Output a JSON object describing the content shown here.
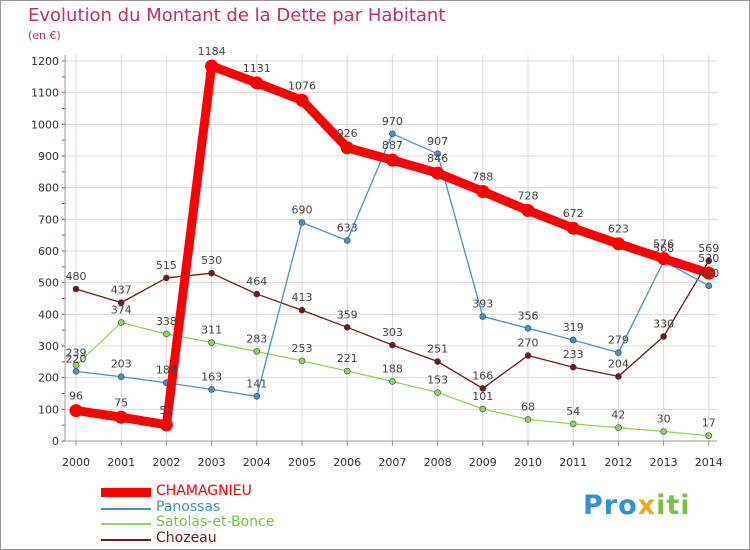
{
  "title": "Evolution du Montant de la Dette par Habitant",
  "unit_label": "(en €)",
  "brand": {
    "part1": "Pro",
    "part2": "x",
    "part3": "iti",
    "colors": [
      "#2f8fd8",
      "#f2a81c",
      "#7cc242"
    ]
  },
  "chart_data": {
    "type": "line",
    "title": "Evolution du Montant de la Dette par Habitant",
    "ylabel": "(en €)",
    "xlabel": "",
    "ylim": [
      0,
      1200
    ],
    "yticks": [
      0,
      100,
      200,
      300,
      400,
      500,
      600,
      700,
      800,
      900,
      1000,
      1100,
      1200
    ],
    "grid": true,
    "legend_position": "bottom-left",
    "x": [
      "2000",
      "2001",
      "2002",
      "2003",
      "2004",
      "2005",
      "2006",
      "2007",
      "2008",
      "2009",
      "2010",
      "2011",
      "2012",
      "2013",
      "2014"
    ],
    "series": [
      {
        "name": "CHAMAGNIEU",
        "color": "#ff0000",
        "values": [
          96,
          75,
          51,
          1184,
          1131,
          1076,
          926,
          887,
          846,
          788,
          728,
          672,
          623,
          576,
          530
        ],
        "labels": [
          "96",
          "75",
          "51",
          "1184",
          "1131",
          "1076",
          "926",
          "887",
          "846",
          "788",
          "728",
          "672",
          "623",
          "576",
          "530"
        ]
      },
      {
        "name": "Panossas",
        "color": "#4a90c8",
        "values": [
          220,
          203,
          184,
          163,
          141,
          690,
          633,
          970,
          907,
          393,
          356,
          319,
          279,
          568,
          490
        ],
        "labels": [
          "220",
          "203",
          "184",
          "163",
          "141",
          "690",
          "633",
          "970",
          "907",
          "393",
          "356",
          "319",
          "279",
          "568",
          "490"
        ]
      },
      {
        "name": "Satolas-et-Bonce",
        "color": "#8fd460",
        "values": [
          239,
          374,
          338,
          311,
          283,
          253,
          221,
          188,
          153,
          101,
          68,
          54,
          42,
          30,
          17
        ],
        "labels": [
          "239",
          "374",
          "338",
          "311",
          "283",
          "253",
          "221",
          "188",
          "153",
          "101",
          "68",
          "54",
          "42",
          "30",
          "17"
        ]
      },
      {
        "name": "Chozeau",
        "color": "#6e1a1a",
        "values": [
          480,
          437,
          515,
          530,
          464,
          413,
          359,
          303,
          251,
          166,
          270,
          233,
          204,
          330,
          569
        ],
        "labels": [
          "480",
          "437",
          "515",
          "530",
          "464",
          "413",
          "359",
          "303",
          "251",
          "166",
          "270",
          "233",
          "204",
          "330",
          "569"
        ]
      }
    ]
  }
}
